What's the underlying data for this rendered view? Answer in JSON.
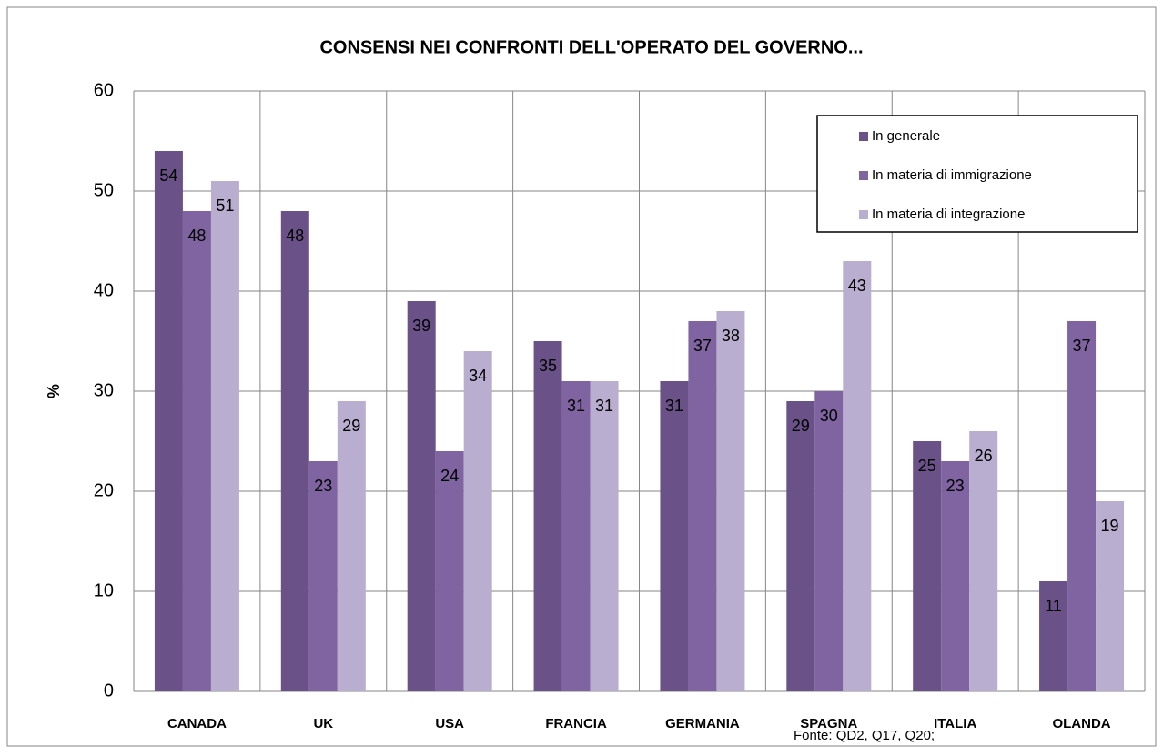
{
  "chart_data": {
    "type": "bar",
    "title": "CONSENSI NEI CONFRONTI DELL'OPERATO DEL GOVERNO...",
    "y_label": "%",
    "source": "Fonte: QD2, Q17, Q20;",
    "categories": [
      "CANADA",
      "UK",
      "USA",
      "FRANCIA",
      "GERMANIA",
      "SPAGNA",
      "ITALIA",
      "OLANDA"
    ],
    "series": [
      {
        "name": "In generale",
        "color": "#6a5288",
        "values": [
          54,
          48,
          39,
          35,
          31,
          29,
          25,
          11
        ]
      },
      {
        "name": "In materia di immigrazione",
        "color": "#8064a2",
        "values": [
          48,
          23,
          24,
          31,
          37,
          30,
          23,
          37
        ]
      },
      {
        "name": "In materia di integrazione",
        "color": "#b9aecf",
        "values": [
          51,
          29,
          34,
          31,
          38,
          43,
          26,
          19
        ]
      }
    ],
    "ylim": [
      0,
      60
    ],
    "yticks": [
      0,
      10,
      20,
      30,
      40,
      50,
      60
    ],
    "grid": true,
    "legend": "upper right"
  }
}
